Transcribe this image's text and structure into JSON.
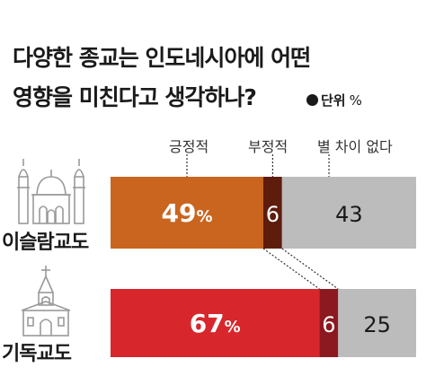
{
  "title_lines": [
    "다양한 종교는 인도네시아에 어떤",
    "영향을 미친다고 생각하나?"
  ],
  "unit": {
    "label": "단위",
    "symbol": "%"
  },
  "colors": {
    "islam_positive": "#c9651f",
    "christian_positive": "#d8262d",
    "islam_negative": "#5e1c0d",
    "christian_negative": "#8c1820",
    "no_difference": "#bcbcbc",
    "connector": "#333333"
  },
  "chart_data": {
    "type": "bar",
    "orientation": "horizontal",
    "stacked": true,
    "categories": [
      "이슬람교도",
      "기독교도"
    ],
    "series": [
      {
        "name": "긍정적",
        "values": [
          49,
          67
        ]
      },
      {
        "name": "부정적",
        "values": [
          6,
          6
        ]
      },
      {
        "name": "별 차이 없다",
        "values": [
          43,
          25
        ]
      }
    ],
    "value_labels": [
      [
        "49%",
        "6",
        "43"
      ],
      [
        "67%",
        "6",
        "25"
      ]
    ],
    "xlim": [
      0,
      98
    ],
    "legend": "top"
  },
  "icons": [
    "mosque-icon",
    "church-icon"
  ]
}
